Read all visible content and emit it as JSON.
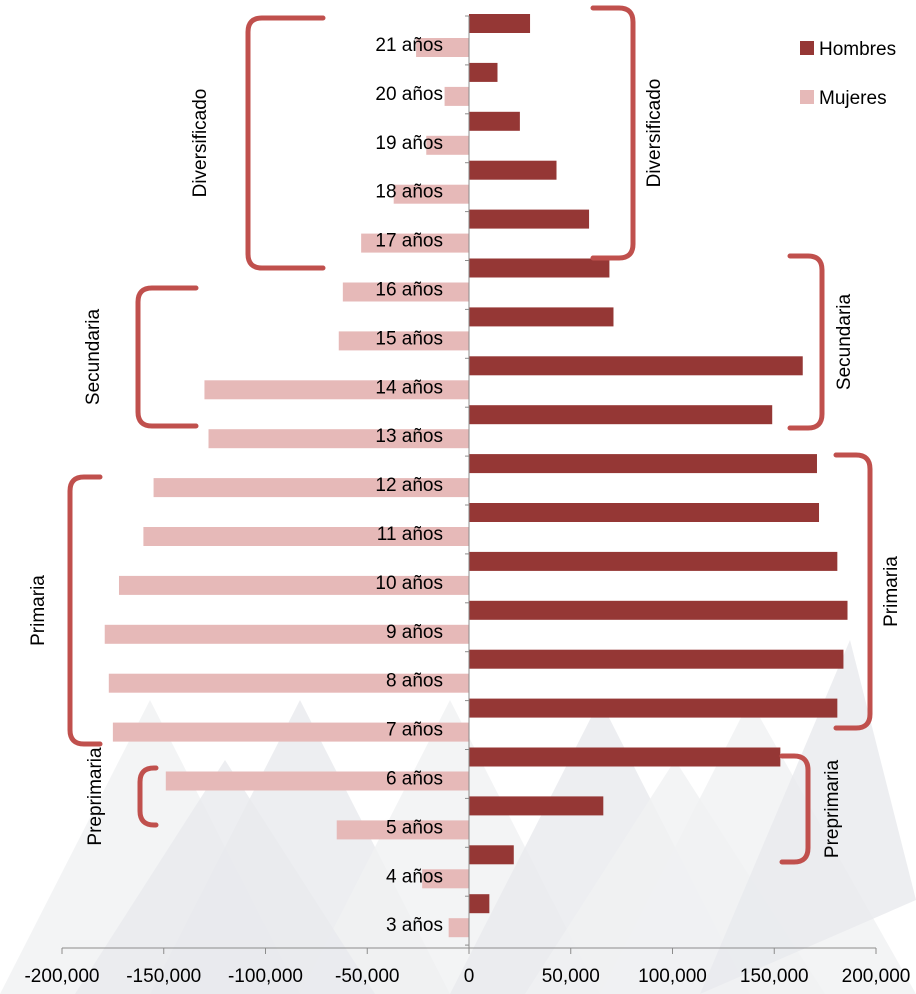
{
  "chart_data": {
    "type": "bar",
    "orientation": "horizontal",
    "title": "",
    "xlabel": "",
    "ylabel": "",
    "xlim": [
      -200000,
      200000
    ],
    "x_ticks": [
      -200000,
      -150000,
      -100000,
      -50000,
      0,
      50000,
      100000,
      150000,
      200000
    ],
    "x_tick_labels": [
      "-200,000",
      "-150,000",
      "-100,000",
      "-50,000",
      "0",
      "50,000",
      "100,000",
      "150,000",
      "200,000"
    ],
    "categories": [
      "3 años",
      "4 años",
      "5 años",
      "6 años",
      "7 años",
      "8 años",
      "9 años",
      "10 años",
      "11 años",
      "12 años",
      "13 años",
      "14 años",
      "15 años",
      "16 años",
      "17 años",
      "18 años",
      "19 años",
      "20 años",
      "21 años"
    ],
    "series": [
      {
        "name": "Hombres",
        "color": "#953735",
        "values": [
          10000,
          22000,
          66000,
          153000,
          181000,
          184000,
          186000,
          181000,
          172000,
          171000,
          149000,
          164000,
          71000,
          69000,
          59000,
          43000,
          25000,
          14000,
          30000
        ]
      },
      {
        "name": "Mujeres",
        "color": "#E6B9B8",
        "values": [
          -10000,
          -23000,
          -65000,
          -149000,
          -175000,
          -177000,
          -179000,
          -172000,
          -160000,
          -155000,
          -128000,
          -130000,
          -64000,
          -62000,
          -53000,
          -37000,
          -21000,
          -12000,
          -26000
        ]
      }
    ],
    "legend": {
      "position": "top-right",
      "entries": [
        "Hombres",
        "Mujeres"
      ]
    },
    "grid": false,
    "bracket_color": "#C0504D",
    "annotations": {
      "left": [
        {
          "label": "Diversificado",
          "from": "17 años",
          "to": "21 años"
        },
        {
          "label": "Secundaria",
          "from": "13 años",
          "to": "16 años"
        },
        {
          "label": "Primaria",
          "from": "7 años",
          "to": "12 años"
        },
        {
          "label": "Preprimaria",
          "from": "4 años",
          "to": "6 años"
        }
      ],
      "right": [
        {
          "label": "Diversificado",
          "from": "17 años",
          "to": "21 años"
        },
        {
          "label": "Secundaria",
          "from": "13 años",
          "to": "16 años"
        },
        {
          "label": "Primaria",
          "from": "7 años",
          "to": "12 años"
        },
        {
          "label": "Preprimaria",
          "from": "3 años",
          "to": "6 años"
        }
      ]
    }
  }
}
